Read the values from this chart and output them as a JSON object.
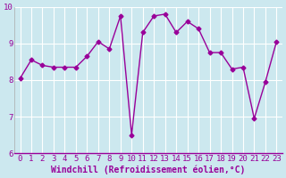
{
  "x": [
    0,
    1,
    2,
    3,
    4,
    5,
    6,
    7,
    8,
    9,
    10,
    11,
    12,
    13,
    14,
    15,
    16,
    17,
    18,
    19,
    20,
    21,
    22,
    23
  ],
  "y": [
    8.05,
    8.55,
    8.4,
    8.35,
    8.35,
    8.35,
    8.65,
    9.05,
    8.85,
    9.75,
    6.5,
    9.3,
    9.75,
    9.8,
    9.3,
    9.6,
    9.4,
    8.75,
    8.75,
    8.3,
    8.35,
    6.95,
    7.95,
    9.05
  ],
  "line_color": "#990099",
  "marker": "D",
  "marker_size": 2.5,
  "bg_color": "#cce8ef",
  "grid_color": "#ffffff",
  "xlabel": "Windchill (Refroidissement éolien,°C)",
  "xlim": [
    -0.5,
    23.5
  ],
  "ylim": [
    6,
    10
  ],
  "yticks": [
    6,
    7,
    8,
    9,
    10
  ],
  "xticks": [
    0,
    1,
    2,
    3,
    4,
    5,
    6,
    7,
    8,
    9,
    10,
    11,
    12,
    13,
    14,
    15,
    16,
    17,
    18,
    19,
    20,
    21,
    22,
    23
  ],
  "xlabel_fontsize": 7.0,
  "tick_fontsize": 6.5,
  "line_width": 1.0,
  "figsize": [
    3.2,
    2.0
  ],
  "dpi": 100
}
